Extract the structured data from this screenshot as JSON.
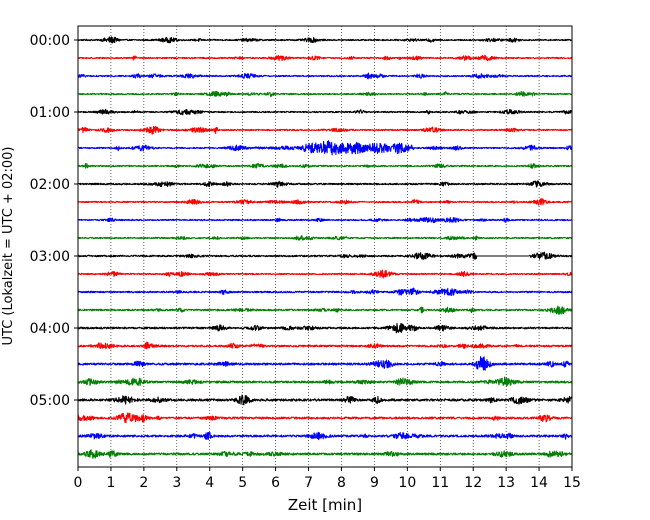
{
  "chart_data": {
    "type": "line",
    "title": "",
    "xlabel": "Zeit  [min]",
    "ylabel": "UTC (Lokalzeit = UTC + 02:00)",
    "xlim": [
      0,
      15
    ],
    "x_ticks": [
      "0",
      "1",
      "2",
      "3",
      "4",
      "5",
      "6",
      "7",
      "8",
      "9",
      "10",
      "11",
      "12",
      "13",
      "14",
      "15"
    ],
    "y_ticks": [
      "00:00",
      "01:00",
      "02:00",
      "03:00",
      "04:00",
      "05:00"
    ],
    "row_interval_min": 15,
    "grid": "vertical dotted at each minute",
    "trace_colors": [
      "#000000",
      "#ff0000",
      "#0000ff",
      "#008000"
    ],
    "series": [
      {
        "start": "00:00",
        "color": "black",
        "amplitude": 0.3
      },
      {
        "start": "00:15",
        "color": "red",
        "amplitude": 0.3
      },
      {
        "start": "00:30",
        "color": "blue",
        "amplitude": 0.3
      },
      {
        "start": "00:45",
        "color": "green",
        "amplitude": 0.3
      },
      {
        "start": "01:00",
        "color": "black",
        "amplitude": 0.3
      },
      {
        "start": "01:15",
        "color": "red",
        "amplitude": 0.3
      },
      {
        "start": "01:30",
        "color": "blue",
        "amplitude": 0.3,
        "event": {
          "from_min": 5.2,
          "to_min": 10.2,
          "peak_min": 8.8,
          "peak_amplitude": 2.5
        }
      },
      {
        "start": "01:45",
        "color": "green",
        "amplitude": 0.3
      },
      {
        "start": "02:00",
        "color": "black",
        "amplitude": 0.35
      },
      {
        "start": "02:15",
        "color": "red",
        "amplitude": 0.3
      },
      {
        "start": "02:30",
        "color": "blue",
        "amplitude": 0.3
      },
      {
        "start": "02:45",
        "color": "green",
        "amplitude": 0.3
      },
      {
        "start": "03:00",
        "color": "black",
        "amplitude": 0.35,
        "gap": {
          "from_min": 12.1,
          "to_min": 13.7
        }
      },
      {
        "start": "03:15",
        "color": "red",
        "amplitude": 0.3
      },
      {
        "start": "03:30",
        "color": "blue",
        "amplitude": 0.35
      },
      {
        "start": "03:45",
        "color": "green",
        "amplitude": 0.35
      },
      {
        "start": "04:00",
        "color": "black",
        "amplitude": 0.4
      },
      {
        "start": "04:15",
        "color": "red",
        "amplitude": 0.4
      },
      {
        "start": "04:30",
        "color": "blue",
        "amplitude": 0.45
      },
      {
        "start": "04:45",
        "color": "green",
        "amplitude": 0.45
      },
      {
        "start": "05:00",
        "color": "black",
        "amplitude": 0.5
      },
      {
        "start": "05:15",
        "color": "red",
        "amplitude": 0.45
      },
      {
        "start": "05:30",
        "color": "blue",
        "amplitude": 0.45
      },
      {
        "start": "05:45",
        "color": "green",
        "amplitude": 0.45
      }
    ]
  }
}
